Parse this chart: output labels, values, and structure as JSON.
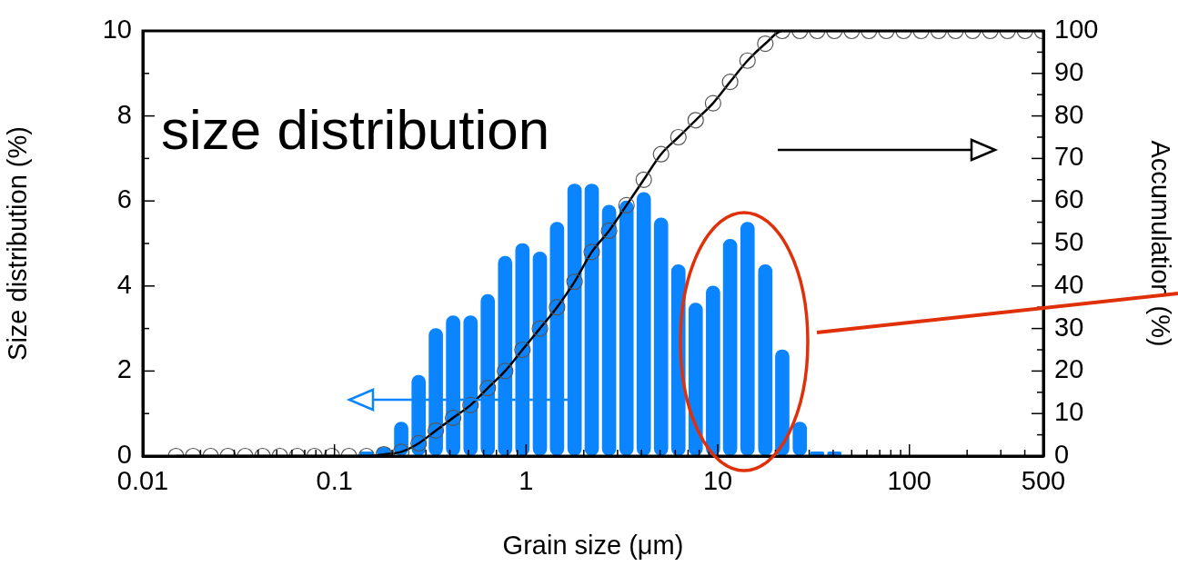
{
  "chart_data": {
    "type": "bar",
    "xlabel": "Grain size (μm)",
    "ylabel": "Size distribution (%)",
    "y2label": "Accumulation (%)",
    "annotations": [
      "size distribution"
    ],
    "x": [
      0.0149,
      0.0183,
      0.0226,
      0.0278,
      0.0342,
      0.0422,
      0.0519,
      0.0639,
      0.0787,
      0.097,
      0.119,
      0.147,
      0.181,
      0.223,
      0.275,
      0.338,
      0.416,
      0.513,
      0.631,
      0.777,
      0.957,
      1.18,
      1.45,
      1.79,
      2.2,
      2.71,
      3.34,
      4.11,
      5.06,
      6.23,
      7.67,
      9.45,
      11.6,
      14.3,
      17.7,
      21.7,
      26.8,
      33.0,
      40.6,
      50.0,
      61.5,
      75.8,
      93.3,
      115,
      142,
      174,
      214,
      264,
      325,
      401,
      493
    ],
    "series": [
      {
        "color": "#0a84ff",
        "values": [
          null,
          null,
          null,
          null,
          null,
          null,
          null,
          null,
          null,
          null,
          null,
          0.1,
          0.2,
          0.8,
          1.9,
          3.0,
          3.3,
          3.3,
          3.8,
          4.7,
          5.0,
          4.8,
          5.5,
          6.4,
          6.4,
          5.9,
          6.0,
          6.2,
          5.6,
          4.5,
          3.6,
          4.0,
          5.1,
          5.5,
          4.5,
          2.5,
          0.8,
          0.1,
          0.1,
          null,
          null,
          null,
          null,
          null,
          null,
          null,
          null,
          null,
          null,
          null,
          null
        ]
      },
      {
        "type": "line",
        "axis": "y2",
        "color": "#000000",
        "values": [
          0,
          0,
          0,
          0,
          0,
          0,
          0,
          0,
          0,
          0,
          0,
          0,
          0.4,
          1,
          3,
          6,
          9,
          12,
          16,
          20,
          25,
          30,
          35,
          41,
          48,
          53,
          59,
          65,
          71,
          75,
          79,
          83,
          88,
          93,
          97,
          100,
          100,
          100,
          100,
          100,
          100,
          100,
          100,
          100,
          100,
          100,
          100,
          100,
          100,
          100,
          100
        ]
      }
    ],
    "log": "x",
    "xlim": [
      0.01,
      500
    ],
    "xticks": [
      0.01,
      {
        "value": 0.02,
        "label": null
      },
      {
        "value": 0.03,
        "label": null
      },
      {
        "value": 0.04,
        "label": null
      },
      {
        "value": 0.05,
        "label": null
      },
      {
        "value": 0.06,
        "label": null
      },
      {
        "value": 0.07,
        "label": null
      },
      {
        "value": 0.08,
        "label": null
      },
      {
        "value": 0.09,
        "label": null
      },
      0.1,
      {
        "value": 0.2,
        "label": null
      },
      {
        "value": 0.3,
        "label": null
      },
      {
        "value": 0.4,
        "label": null
      },
      {
        "value": 0.5,
        "label": null
      },
      {
        "value": 0.6,
        "label": null
      },
      {
        "value": 0.7,
        "label": null
      },
      {
        "value": 0.8,
        "label": null
      },
      {
        "value": 0.9,
        "label": null
      },
      1,
      {
        "value": 2,
        "label": null
      },
      {
        "value": 3,
        "label": null
      },
      {
        "value": 4,
        "label": null
      },
      {
        "value": 5,
        "label": null
      },
      {
        "value": 6,
        "label": null
      },
      {
        "value": 7,
        "label": null
      },
      {
        "value": 8,
        "label": null
      },
      {
        "value": 9,
        "label": null
      },
      10,
      {
        "value": 20,
        "label": null
      },
      {
        "value": 30,
        "label": null
      },
      {
        "value": 40,
        "label": null
      },
      {
        "value": 50,
        "label": null
      },
      {
        "value": 60,
        "label": null
      },
      {
        "value": 70,
        "label": null
      },
      {
        "value": 80,
        "label": null
      },
      {
        "value": 90,
        "label": null
      },
      100,
      {
        "value": 200,
        "label": null
      },
      {
        "value": 300,
        "label": null
      },
      {
        "value": 400,
        "label": null
      },
      500
    ],
    "ylim": [
      0,
      10
    ],
    "yticks": [
      0,
      {
        "value": 1,
        "label": null
      },
      2,
      {
        "value": 3,
        "label": null
      },
      4,
      {
        "value": 5,
        "label": null
      },
      6,
      {
        "value": 7,
        "label": null
      },
      8,
      {
        "value": 9,
        "label": null
      },
      10
    ],
    "y2lim": [
      0,
      100
    ],
    "y2ticks": [
      0,
      {
        "value": 5,
        "label": null
      },
      10,
      {
        "value": 15,
        "label": null
      },
      20,
      {
        "value": 25,
        "label": null
      },
      30,
      {
        "value": 35,
        "label": null
      },
      40,
      {
        "value": 45,
        "label": null
      },
      50,
      {
        "value": 55,
        "label": null
      },
      60,
      {
        "value": 65,
        "label": null
      },
      70,
      {
        "value": 75,
        "label": null
      },
      80,
      {
        "value": 85,
        "label": null
      },
      90,
      {
        "value": 95,
        "label": null
      },
      100
    ],
    "grid": false,
    "legend": false,
    "marker": "circle",
    "line_style": "solid"
  }
}
